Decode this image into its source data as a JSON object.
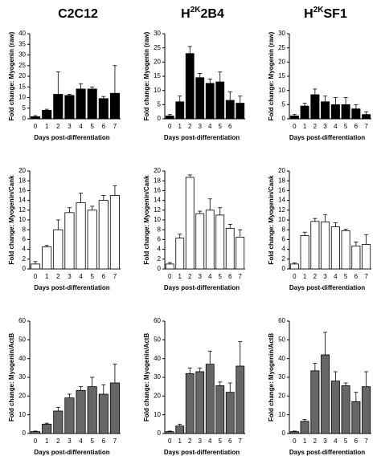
{
  "chart_data": [
    {
      "type": "bar",
      "title": [
        {
          "text": "C2C12"
        }
      ],
      "ylabel": "Fold change: Myogenin (raw)",
      "xlabel": "Days post-differentiation",
      "categories": [
        "0",
        "1",
        "2",
        "3",
        "4",
        "5",
        "6",
        "7"
      ],
      "values": [
        1,
        4,
        11.5,
        11,
        14,
        14,
        9.5,
        12
      ],
      "errors": [
        0.5,
        0.5,
        10.5,
        0.5,
        2.5,
        1,
        1,
        13
      ],
      "color": "#000000",
      "ylim": [
        0,
        40
      ],
      "yticks": [
        0,
        5,
        10,
        15,
        20,
        25,
        30,
        35,
        40
      ]
    },
    {
      "type": "bar",
      "title": [
        {
          "text": "H"
        },
        {
          "text": "2K",
          "sup": true
        },
        {
          "text": "2B4"
        }
      ],
      "ylabel": "Fold change: Myogenin (raw)",
      "xlabel": "Days post-differentiation",
      "categories": [
        "0",
        "1",
        "2",
        "3",
        "4",
        "5",
        "6",
        null
      ],
      "values": [
        1,
        6,
        23,
        14.5,
        12.5,
        13,
        6.5,
        5.5
      ],
      "errors": [
        0.5,
        2,
        2.5,
        1.5,
        1.5,
        3.5,
        3,
        2.5
      ],
      "color": "#000000",
      "ylim": [
        0,
        30
      ],
      "yticks": [
        0,
        5,
        10,
        15,
        20,
        25,
        30
      ]
    },
    {
      "type": "bar",
      "title": [
        {
          "text": "H"
        },
        {
          "text": "2K",
          "sup": true
        },
        {
          "text": "SF1"
        }
      ],
      "ylabel": "Fold change: Myogenin (raw)",
      "xlabel": "Days post-differentiation",
      "categories": [
        "0",
        "1",
        "2",
        "3",
        "4",
        "5",
        "6",
        "7"
      ],
      "values": [
        1,
        4.5,
        8.5,
        6,
        5,
        5,
        3.5,
        1.5
      ],
      "errors": [
        0.5,
        1,
        2,
        2,
        2.5,
        2.5,
        1.5,
        1
      ],
      "color": "#000000",
      "ylim": [
        0,
        30
      ],
      "yticks": [
        0,
        5,
        10,
        15,
        20,
        25,
        30
      ]
    },
    {
      "type": "bar",
      "ylabel": "Fold change: Myogenin/Cank",
      "xlabel": "Days post-differentiation",
      "categories": [
        "0",
        "1",
        "2",
        "3",
        "4",
        "5",
        "6",
        "7"
      ],
      "values": [
        1,
        4.5,
        8,
        11.5,
        13.5,
        12,
        14,
        15
      ],
      "errors": [
        0.5,
        0.3,
        2,
        1,
        2,
        0.8,
        1,
        2
      ],
      "color": "#ffffff",
      "ylim": [
        0,
        20
      ],
      "yticks": [
        0,
        2,
        4,
        6,
        8,
        10,
        12,
        14,
        16,
        18,
        20
      ]
    },
    {
      "type": "bar",
      "ylabel": "Fold change: Myogenin/Cank",
      "xlabel": "Days post-differentiation",
      "categories": [
        "0",
        "1",
        "2",
        "3",
        "4",
        "5",
        "6",
        "7"
      ],
      "values": [
        1,
        6.3,
        18.7,
        11.3,
        12,
        11,
        8.3,
        6.5
      ],
      "errors": [
        0.3,
        0.8,
        0.5,
        0.5,
        2.3,
        1.5,
        0.8,
        1.5
      ],
      "color": "#ffffff",
      "ylim": [
        0,
        20
      ],
      "yticks": [
        0,
        2,
        4,
        6,
        8,
        10,
        12,
        14,
        16,
        18,
        20
      ]
    },
    {
      "type": "bar",
      "ylabel": "Fold change: Myogenin/Cank",
      "xlabel": "Days post-differentiation",
      "categories": [
        "0",
        "1",
        "2",
        "3",
        "4",
        "5",
        "6",
        "7"
      ],
      "values": [
        1,
        6.8,
        9.7,
        9.6,
        8.6,
        7.8,
        4.7,
        5
      ],
      "errors": [
        0.2,
        0.7,
        0.6,
        1.5,
        0.8,
        0.3,
        0.8,
        2
      ],
      "color": "#ffffff",
      "ylim": [
        0,
        20
      ],
      "yticks": [
        0,
        2,
        4,
        6,
        8,
        10,
        12,
        14,
        16,
        18,
        20
      ]
    },
    {
      "type": "bar",
      "ylabel": "Fold change: Myogenin/ActB",
      "xlabel": "Days post-differentiation",
      "categories": [
        "0",
        "1",
        "2",
        "3",
        "4",
        "5",
        "6",
        "7"
      ],
      "values": [
        1,
        5,
        12,
        19,
        23,
        25,
        21,
        27
      ],
      "errors": [
        0.3,
        0.5,
        2,
        2,
        2,
        5,
        5,
        10
      ],
      "color": "#666666",
      "ylim": [
        0,
        60
      ],
      "yticks": [
        0,
        10,
        20,
        30,
        40,
        50,
        60
      ]
    },
    {
      "type": "bar",
      "ylabel": "Fold change: Myogenin/ActB",
      "xlabel": "Days post-differentiation",
      "categories": [
        "0",
        "1",
        "2",
        "3",
        "4",
        "5",
        "6",
        "7"
      ],
      "values": [
        1,
        4,
        32,
        33,
        37,
        25.5,
        22,
        36
      ],
      "errors": [
        0.3,
        1,
        3,
        2,
        7,
        2,
        5,
        13
      ],
      "color": "#666666",
      "ylim": [
        0,
        60
      ],
      "yticks": [
        0,
        10,
        20,
        30,
        40,
        50,
        60
      ]
    },
    {
      "type": "bar",
      "ylabel": "Fold change: Myogenin/ActB",
      "xlabel": "Days post-differentiation",
      "categories": [
        "0",
        "1",
        "2",
        "3",
        "4",
        "5",
        "6",
        "7"
      ],
      "values": [
        1,
        6.5,
        33.5,
        42,
        28,
        25.5,
        17,
        25
      ],
      "errors": [
        0.3,
        1,
        4,
        12,
        5,
        1.5,
        5,
        8
      ],
      "color": "#666666",
      "ylim": [
        0,
        60
      ],
      "yticks": [
        0,
        10,
        20,
        30,
        40,
        50,
        60
      ]
    }
  ]
}
